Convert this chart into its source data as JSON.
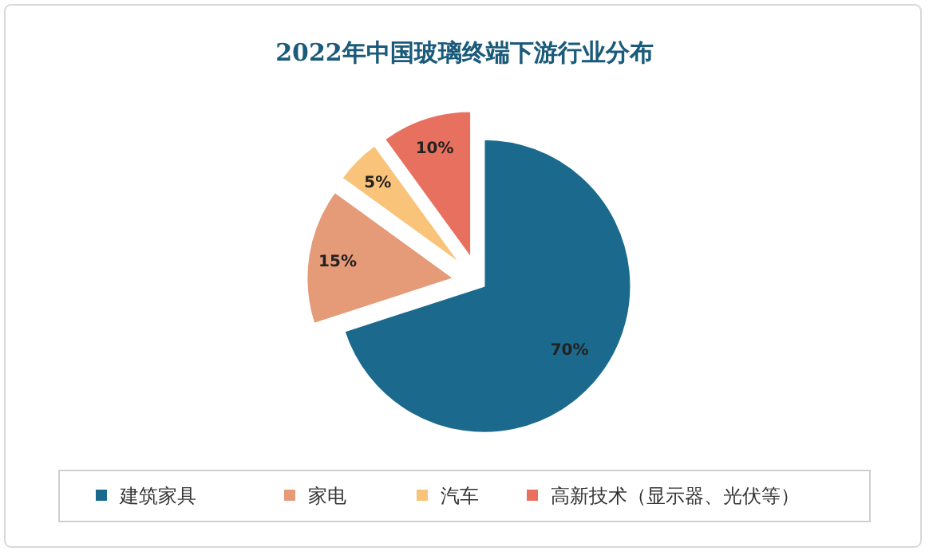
{
  "chart_data": {
    "type": "pie",
    "title": "2022年中国玻璃终端下游行业分布",
    "categories": [
      "建筑家具",
      "家电",
      "汽车",
      "高新技术（显示器、光伏等）"
    ],
    "values": [
      70,
      15,
      5,
      10
    ],
    "value_labels": [
      "70%",
      "15%",
      "5%",
      "10%"
    ],
    "colors": [
      "#1b6a8e",
      "#e59a78",
      "#f9c47a",
      "#e8705e"
    ],
    "legend": "bottom"
  }
}
